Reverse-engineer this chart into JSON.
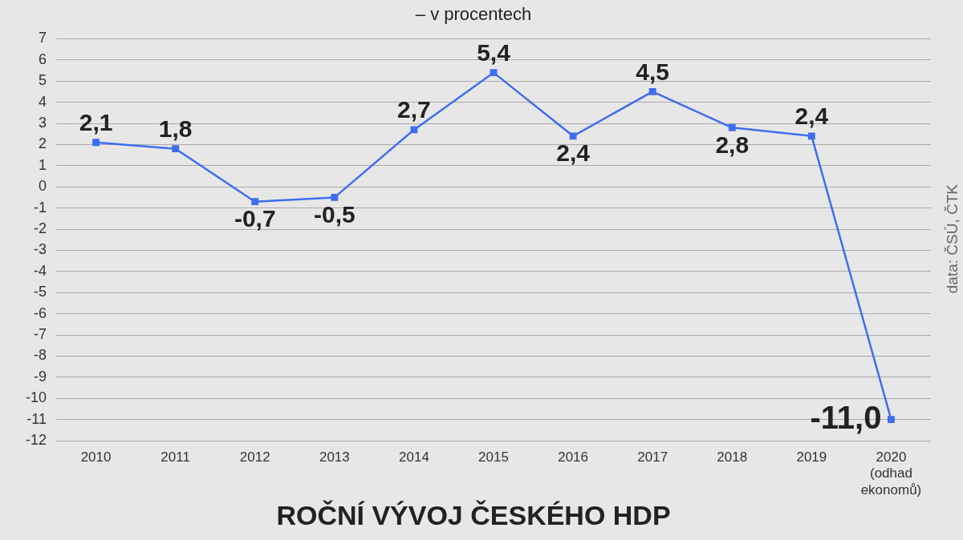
{
  "chart_data": {
    "type": "line",
    "title": "ROČNÍ VÝVOJ ČESKÉHO HDP",
    "subtitle": "– v procentech",
    "categories": [
      "2010",
      "2011",
      "2012",
      "2013",
      "2014",
      "2015",
      "2016",
      "2017",
      "2018",
      "2019",
      "2020\n(odhad\nekonomů)"
    ],
    "series": [
      {
        "color": "#3d6ef2",
        "values": [
          2.1,
          1.8,
          -0.7,
          -0.5,
          2.7,
          5.4,
          2.4,
          4.5,
          2.8,
          2.4,
          -11.0
        ],
        "value_labels": [
          "2,1",
          "1,8",
          "-0,7",
          "-0,5",
          "2,7",
          "5,4",
          "2,4",
          "4,5",
          "2,8",
          "2,4",
          "-11,0"
        ]
      }
    ],
    "ylim": [
      -12,
      7
    ],
    "yticks": [
      -12,
      -11,
      -10,
      -9,
      -8,
      -7,
      -6,
      -5,
      -4,
      -3,
      -2,
      -1,
      0,
      1,
      2,
      3,
      4,
      5,
      6,
      7
    ],
    "grid": "y",
    "marker": "square",
    "line_style": "solid",
    "legend": false,
    "annotations": [
      "data: ČSÚ, ČTK"
    ]
  }
}
